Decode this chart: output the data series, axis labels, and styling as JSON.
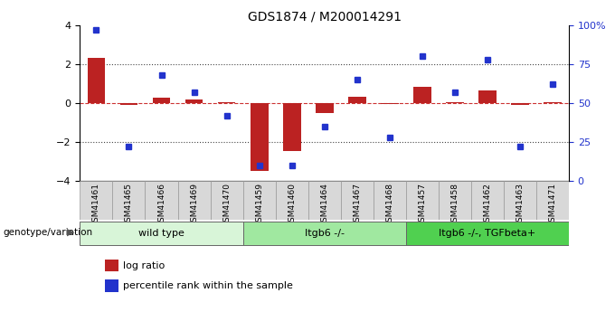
{
  "title": "GDS1874 / M200014291",
  "samples": [
    "GSM41461",
    "GSM41465",
    "GSM41466",
    "GSM41469",
    "GSM41470",
    "GSM41459",
    "GSM41460",
    "GSM41464",
    "GSM41467",
    "GSM41468",
    "GSM41457",
    "GSM41458",
    "GSM41462",
    "GSM41463",
    "GSM41471"
  ],
  "log_ratio": [
    2.3,
    -0.1,
    0.25,
    0.2,
    0.05,
    -3.5,
    -2.45,
    -0.5,
    0.3,
    -0.05,
    0.85,
    0.05,
    0.65,
    -0.1,
    0.05
  ],
  "percentile_rank": [
    97,
    22,
    68,
    57,
    42,
    10,
    10,
    35,
    65,
    28,
    80,
    57,
    78,
    22,
    62
  ],
  "groups": [
    {
      "label": "wild type",
      "start": 0,
      "end": 5,
      "color": "#d8f5d8"
    },
    {
      "label": "Itgb6 -/-",
      "start": 5,
      "end": 10,
      "color": "#a0e8a0"
    },
    {
      "label": "Itgb6 -/-, TGFbeta+",
      "start": 10,
      "end": 15,
      "color": "#50d050"
    }
  ],
  "ylim": [
    -4,
    4
  ],
  "y2lim": [
    0,
    100
  ],
  "yticks": [
    -4,
    -2,
    0,
    2,
    4
  ],
  "y2ticks": [
    0,
    25,
    50,
    75,
    100
  ],
  "y2ticklabels": [
    "0",
    "25",
    "50",
    "75",
    "100%"
  ],
  "hlines": [
    2.0,
    -2.0
  ],
  "bar_color": "#bb2222",
  "square_color": "#2233cc",
  "zeroline_color": "#cc3333",
  "dotted_color": "#444444",
  "legend_items": [
    {
      "label": "log ratio",
      "color": "#bb2222"
    },
    {
      "label": "percentile rank within the sample",
      "color": "#2233cc"
    }
  ],
  "group_label_text": "genotype/variation"
}
